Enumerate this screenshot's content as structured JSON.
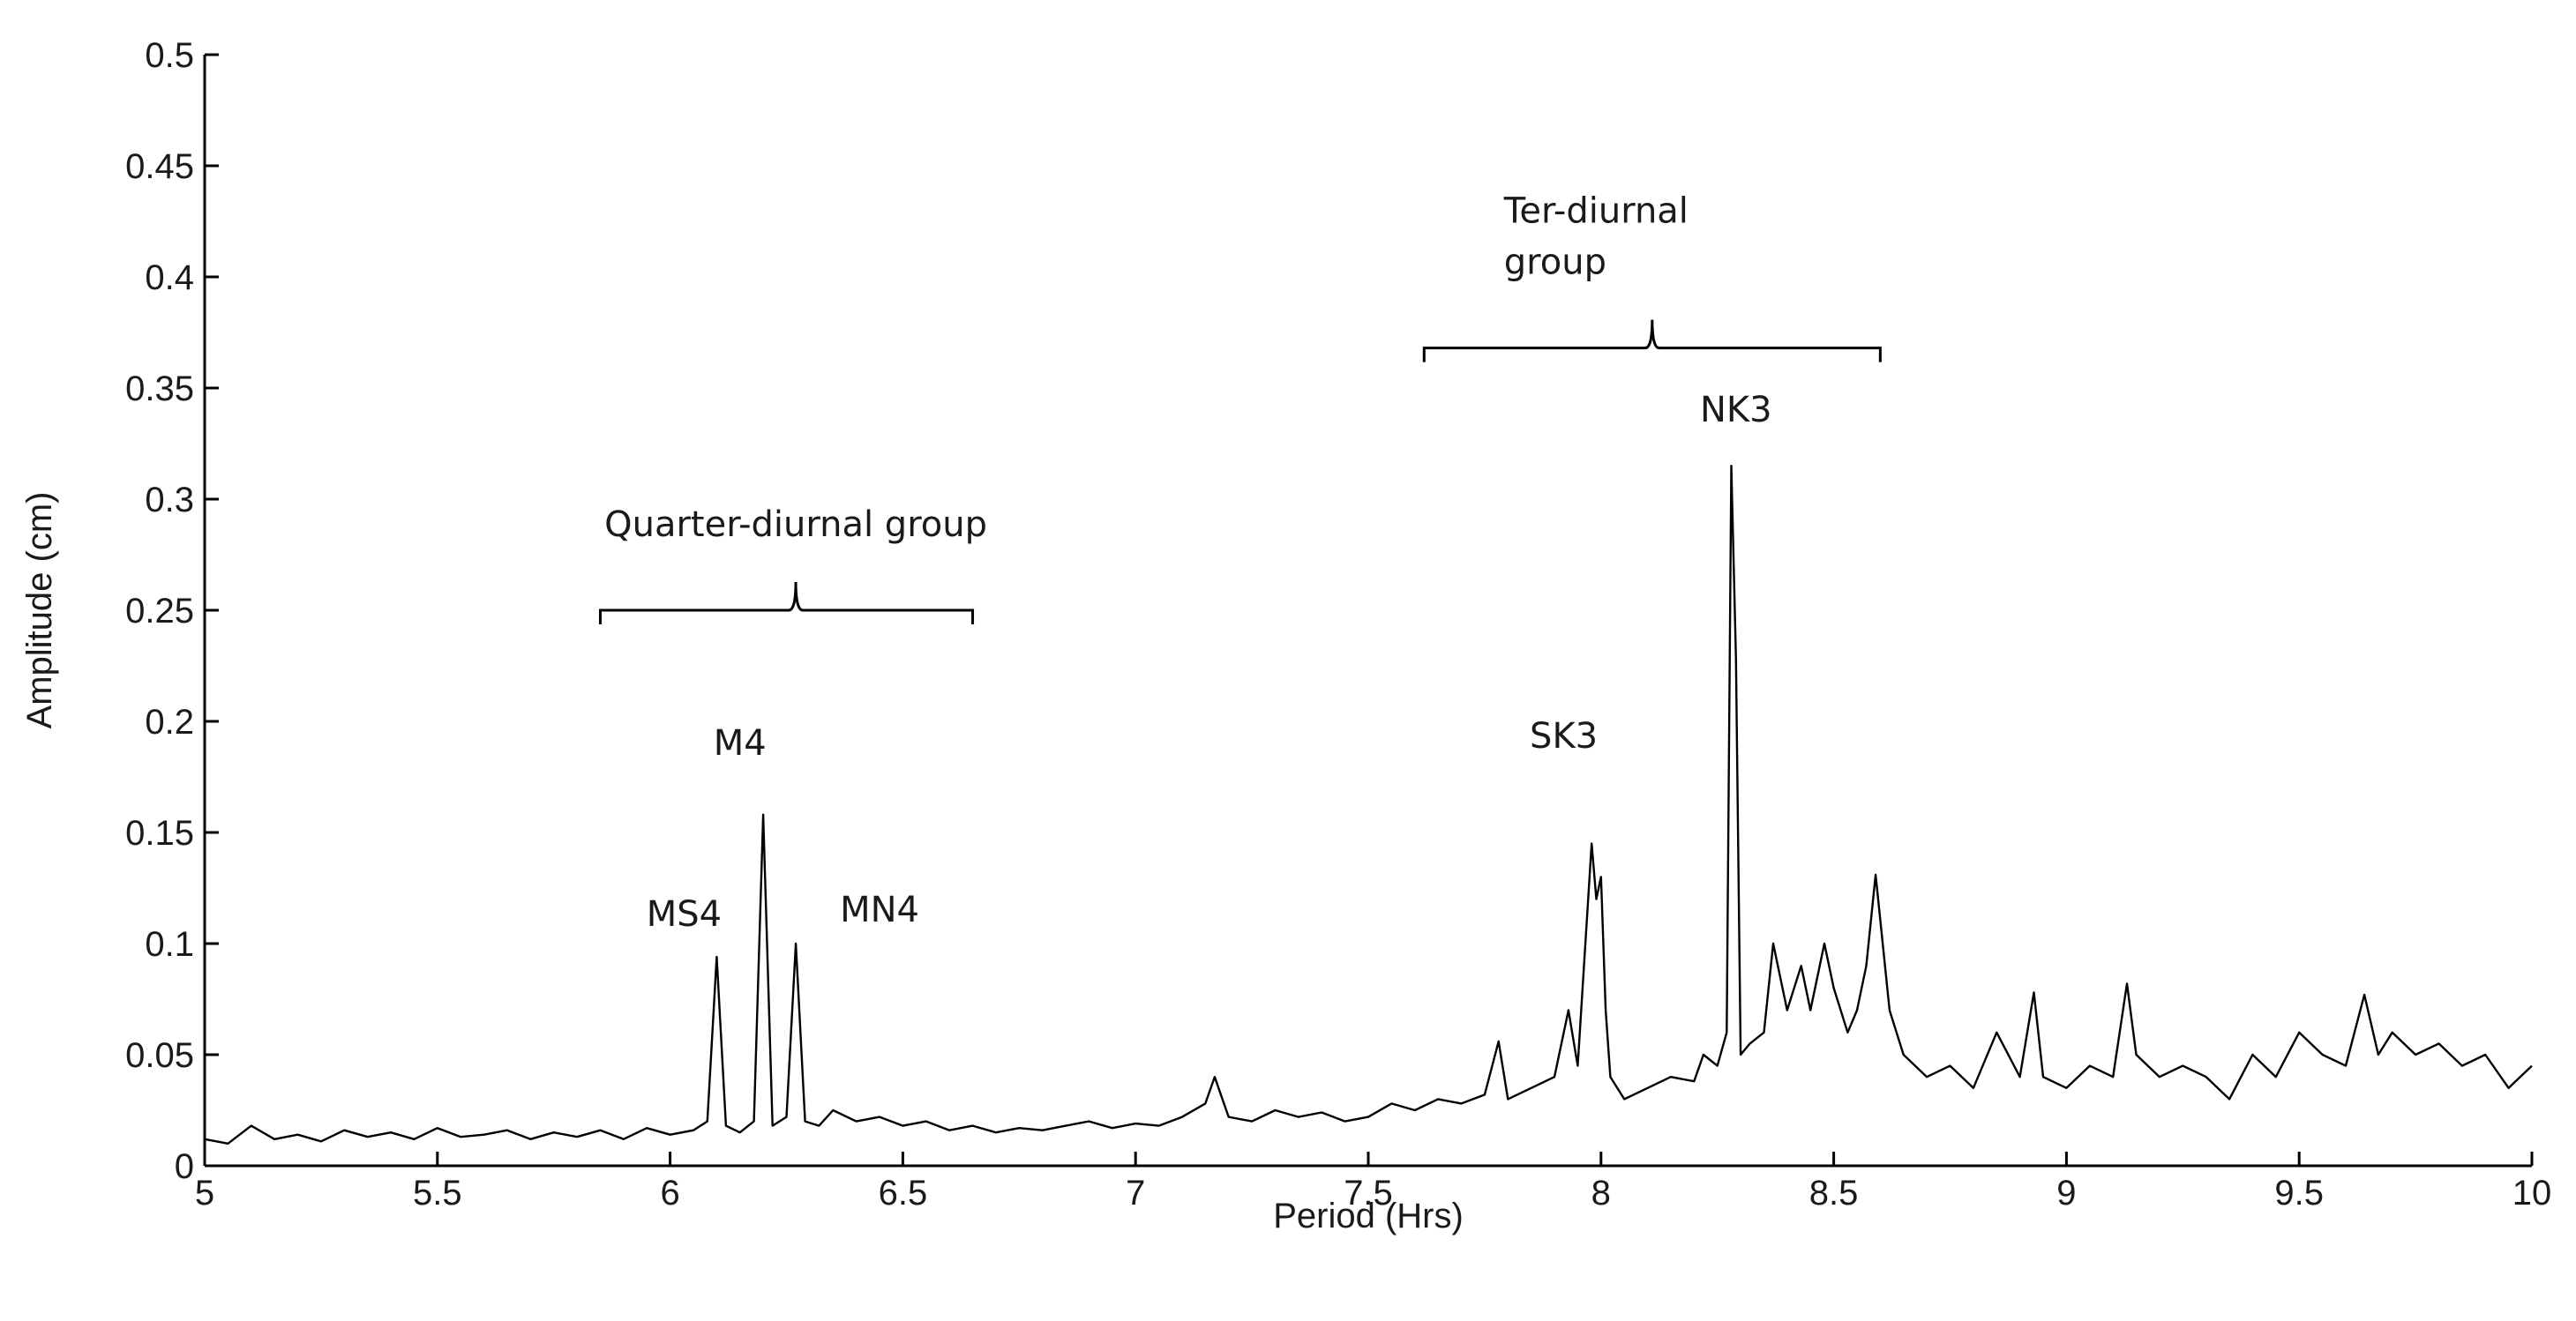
{
  "chart_data": {
    "type": "line",
    "title": "",
    "xlabel": "Period (Hrs)",
    "ylabel": "Amplitude (cm)",
    "xlim": [
      5,
      10
    ],
    "ylim": [
      0,
      0.5
    ],
    "grid": false,
    "line_color": "#000000",
    "xticks": [
      "5",
      "5.5",
      "6",
      "6.5",
      "7",
      "7.5",
      "8",
      "8.5",
      "9",
      "9.5",
      "10"
    ],
    "yticks": [
      "0",
      "0.05",
      "0.1",
      "0.15",
      "0.2",
      "0.25",
      "0.3",
      "0.35",
      "0.4",
      "0.45",
      "0.5"
    ],
    "groups": [
      {
        "label_lines": [
          "Quarter-diurnal group"
        ],
        "x_start": 5.85,
        "x_end": 6.65,
        "x_center": 6.27,
        "y": 0.25
      },
      {
        "label_lines": [
          "Ter-diurnal",
          "group"
        ],
        "x_start": 7.62,
        "x_end": 8.6,
        "x_center": 8.11,
        "y": 0.368
      }
    ],
    "annotations": [
      {
        "text": "MS4",
        "x": 6.03,
        "y": 0.108
      },
      {
        "text": "M4",
        "x": 6.15,
        "y": 0.185
      },
      {
        "text": "MN4",
        "x": 6.45,
        "y": 0.11
      },
      {
        "text": "SK3",
        "x": 7.92,
        "y": 0.188
      },
      {
        "text": "NK3",
        "x": 8.29,
        "y": 0.335
      }
    ],
    "x": [
      5.0,
      5.05,
      5.1,
      5.15,
      5.2,
      5.25,
      5.3,
      5.35,
      5.4,
      5.45,
      5.5,
      5.55,
      5.6,
      5.65,
      5.7,
      5.75,
      5.8,
      5.85,
      5.9,
      5.95,
      6.0,
      6.05,
      6.08,
      6.1,
      6.12,
      6.15,
      6.18,
      6.2,
      6.22,
      6.25,
      6.27,
      6.29,
      6.32,
      6.35,
      6.4,
      6.45,
      6.5,
      6.55,
      6.6,
      6.65,
      6.7,
      6.75,
      6.8,
      6.85,
      6.9,
      6.95,
      7.0,
      7.05,
      7.1,
      7.15,
      7.17,
      7.2,
      7.25,
      7.3,
      7.35,
      7.4,
      7.45,
      7.5,
      7.55,
      7.6,
      7.65,
      7.7,
      7.75,
      7.78,
      7.8,
      7.85,
      7.9,
      7.93,
      7.95,
      7.98,
      7.99,
      8.0,
      8.01,
      8.02,
      8.05,
      8.1,
      8.15,
      8.2,
      8.22,
      8.25,
      8.27,
      8.28,
      8.29,
      8.3,
      8.32,
      8.35,
      8.37,
      8.4,
      8.43,
      8.45,
      8.48,
      8.5,
      8.53,
      8.55,
      8.57,
      8.59,
      8.62,
      8.65,
      8.7,
      8.75,
      8.8,
      8.85,
      8.9,
      8.93,
      8.95,
      9.0,
      9.05,
      9.1,
      9.13,
      9.15,
      9.2,
      9.25,
      9.3,
      9.35,
      9.4,
      9.45,
      9.5,
      9.55,
      9.6,
      9.64,
      9.67,
      9.7,
      9.75,
      9.8,
      9.85,
      9.9,
      9.95,
      10.0
    ],
    "y": [
      0.012,
      0.01,
      0.018,
      0.012,
      0.014,
      0.011,
      0.016,
      0.013,
      0.015,
      0.012,
      0.017,
      0.013,
      0.014,
      0.016,
      0.012,
      0.015,
      0.013,
      0.016,
      0.012,
      0.017,
      0.014,
      0.016,
      0.02,
      0.094,
      0.018,
      0.015,
      0.02,
      0.158,
      0.018,
      0.022,
      0.1,
      0.02,
      0.018,
      0.025,
      0.02,
      0.022,
      0.018,
      0.02,
      0.016,
      0.018,
      0.015,
      0.017,
      0.016,
      0.018,
      0.02,
      0.017,
      0.019,
      0.018,
      0.022,
      0.028,
      0.04,
      0.022,
      0.02,
      0.025,
      0.022,
      0.024,
      0.02,
      0.022,
      0.028,
      0.025,
      0.03,
      0.028,
      0.032,
      0.056,
      0.03,
      0.035,
      0.04,
      0.07,
      0.045,
      0.145,
      0.12,
      0.13,
      0.07,
      0.04,
      0.03,
      0.035,
      0.04,
      0.038,
      0.05,
      0.045,
      0.06,
      0.315,
      0.228,
      0.05,
      0.055,
      0.06,
      0.1,
      0.07,
      0.09,
      0.07,
      0.1,
      0.08,
      0.06,
      0.07,
      0.09,
      0.131,
      0.07,
      0.05,
      0.04,
      0.045,
      0.035,
      0.06,
      0.04,
      0.078,
      0.04,
      0.035,
      0.045,
      0.04,
      0.082,
      0.05,
      0.04,
      0.045,
      0.04,
      0.03,
      0.05,
      0.04,
      0.06,
      0.05,
      0.045,
      0.077,
      0.05,
      0.06,
      0.05,
      0.055,
      0.045,
      0.05,
      0.035,
      0.045
    ]
  }
}
